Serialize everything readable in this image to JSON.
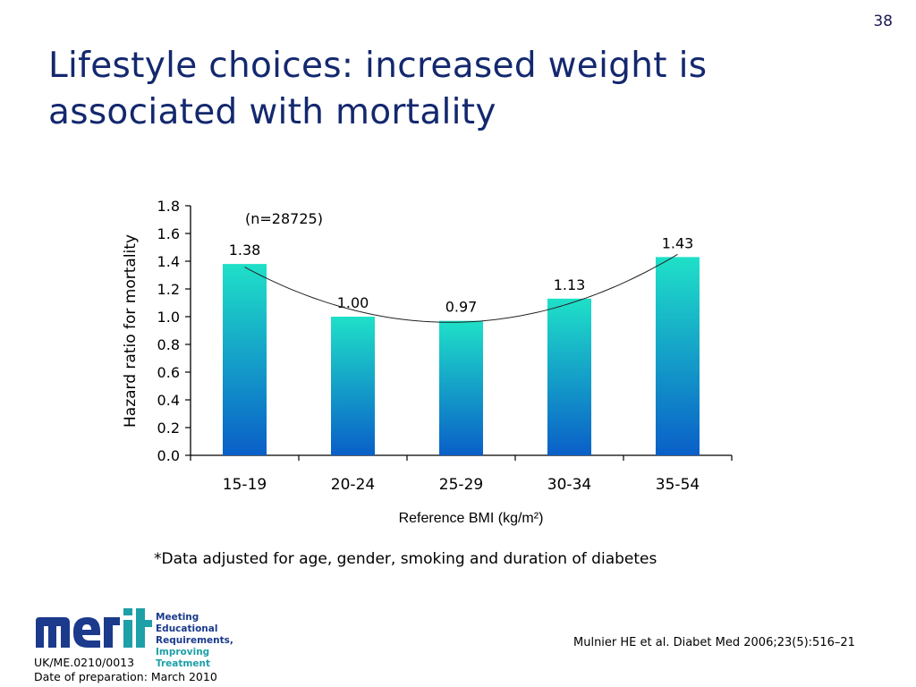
{
  "slide_number": "38",
  "title": "Lifestyle choices: increased weight is associated with mortality",
  "footnote": "*Data adjusted for age, gender, smoking and duration of diabetes",
  "citation": "Mulnier HE et al. Diabet Med 2006;23(5):516–21",
  "doc_code_line1": "UK/ME.0210/0013",
  "doc_code_line2": "Date of preparation: March 2010",
  "logo": {
    "word": "merit",
    "tagline": [
      "Meeting Educational",
      "Requirements,",
      "Improving Treatment"
    ]
  },
  "colors": {
    "title": "#13286e",
    "bar_top": "#1fe0c8",
    "bar_bottom": "#0a5fc8",
    "logo_blue": "#1b3a8c",
    "logo_teal": "#1da0a8"
  },
  "chart_data": {
    "type": "bar",
    "categories": [
      "15-19",
      "20-24",
      "25-29",
      "30-34",
      "35-54"
    ],
    "values": [
      1.38,
      1.0,
      0.97,
      1.13,
      1.43
    ],
    "value_labels": [
      "1.38",
      "1.00",
      "0.97",
      "1.13",
      "1.43"
    ],
    "ylabel": "Hazard ratio for mortality",
    "xlabel": "Reference BMI (kg/m²)",
    "ylim": [
      0,
      1.8
    ],
    "y_ticks": [
      "0.0",
      "0.2",
      "0.4",
      "0.6",
      "0.8",
      "1.0",
      "1.2",
      "1.4",
      "1.6",
      "1.8"
    ],
    "annotation": "(n=28725)",
    "trendline": "quadratic",
    "grid": false,
    "legend": "none"
  }
}
